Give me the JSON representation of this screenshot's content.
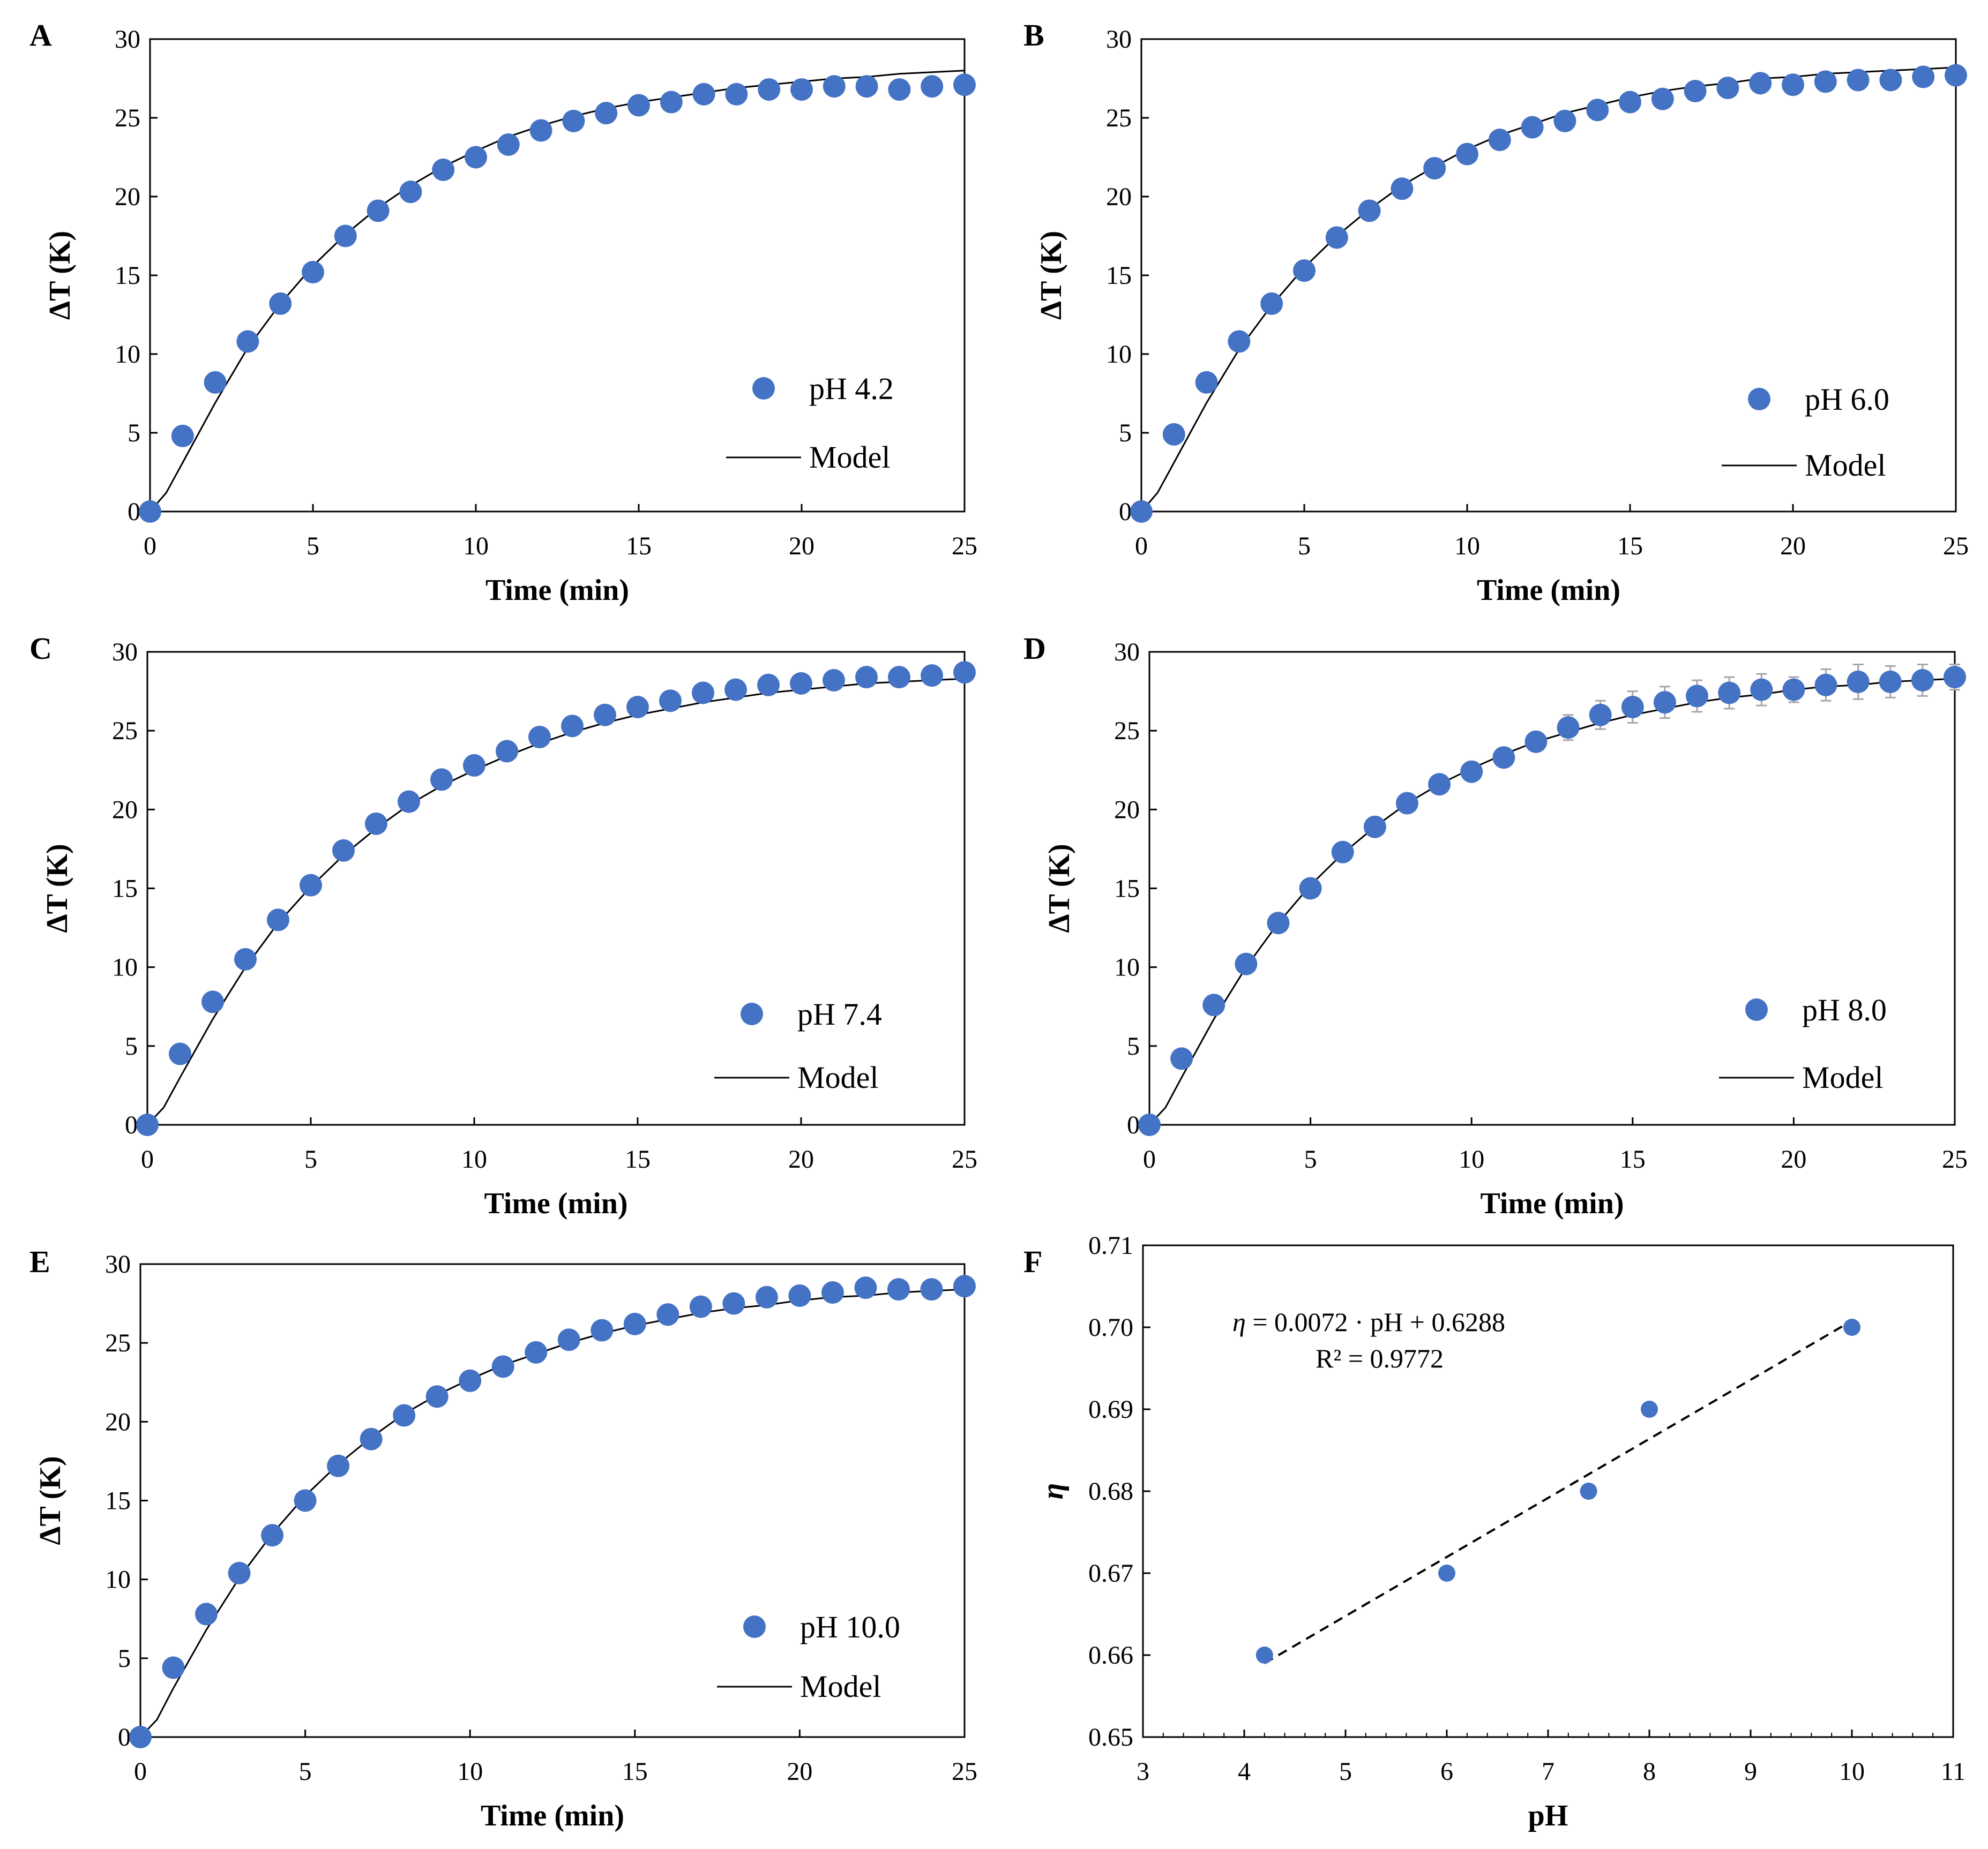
{
  "figure": {
    "marker_color": "#4472C4",
    "line_color": "#000000",
    "error_bar_color": "#A6A6A6"
  },
  "chart_data": [
    {
      "panel": "A",
      "type": "scatter",
      "xlabel": "Time (min)",
      "ylabel": "ΔT (K)",
      "xlim": [
        0,
        25
      ],
      "ylim": [
        0,
        30
      ],
      "xticks": [
        0,
        5,
        10,
        15,
        20,
        25
      ],
      "yticks": [
        0,
        5,
        10,
        15,
        20,
        25,
        30
      ],
      "grid": false,
      "legend_position": "right",
      "series": [
        {
          "name": "pH 4.2",
          "kind": "markers",
          "x": [
            0,
            1,
            2,
            3,
            4,
            5,
            6,
            7,
            8,
            9,
            10,
            11,
            12,
            13,
            14,
            15,
            16,
            17,
            18,
            19,
            20,
            21,
            22,
            23,
            24,
            25
          ],
          "y": [
            0,
            4.8,
            8.2,
            10.8,
            13.2,
            15.2,
            17.5,
            19.1,
            20.3,
            21.7,
            22.5,
            23.3,
            24.2,
            24.8,
            25.3,
            25.8,
            26.0,
            26.5,
            26.5,
            26.8,
            26.8,
            27.0,
            27.0,
            26.8,
            27.0,
            27.1
          ],
          "err": [
            0,
            0,
            0,
            0,
            0,
            0,
            0,
            0,
            0,
            0,
            0,
            0,
            0,
            0,
            0,
            0,
            0,
            0,
            0,
            0.3,
            0.4,
            0.4,
            0.3,
            0.3,
            0.3,
            0.3
          ]
        },
        {
          "name": "Model",
          "kind": "line",
          "x": [
            0,
            0.5,
            1,
            2,
            3,
            4,
            5,
            6,
            7,
            8,
            9,
            10,
            11,
            12,
            13,
            14,
            15,
            16,
            17,
            18,
            19,
            20,
            21,
            22,
            23,
            24,
            25
          ],
          "y": [
            0,
            1.2,
            3.1,
            6.9,
            10.4,
            13.2,
            15.6,
            17.6,
            19.3,
            20.7,
            21.9,
            22.9,
            23.8,
            24.5,
            25.1,
            25.6,
            26.0,
            26.3,
            26.6,
            26.9,
            27.1,
            27.3,
            27.5,
            27.6,
            27.8,
            27.9,
            28.0
          ]
        }
      ]
    },
    {
      "panel": "B",
      "type": "scatter",
      "xlabel": "Time (min)",
      "ylabel": "ΔT (K)",
      "xlim": [
        0,
        25
      ],
      "ylim": [
        0,
        30
      ],
      "xticks": [
        0,
        5,
        10,
        15,
        20,
        25
      ],
      "yticks": [
        0,
        5,
        10,
        15,
        20,
        25,
        30
      ],
      "grid": false,
      "legend_position": "right",
      "series": [
        {
          "name": "pH 6.0",
          "kind": "markers",
          "x": [
            0,
            1,
            2,
            3,
            4,
            5,
            6,
            7,
            8,
            9,
            10,
            11,
            12,
            13,
            14,
            15,
            16,
            17,
            18,
            19,
            20,
            21,
            22,
            23,
            24,
            25
          ],
          "y": [
            0,
            4.9,
            8.2,
            10.8,
            13.2,
            15.3,
            17.4,
            19.1,
            20.5,
            21.8,
            22.7,
            23.6,
            24.4,
            24.8,
            25.5,
            26.0,
            26.2,
            26.7,
            26.9,
            27.2,
            27.1,
            27.3,
            27.4,
            27.4,
            27.6,
            27.7
          ],
          "err": [
            0,
            0,
            0,
            0,
            0,
            0,
            0,
            0,
            0,
            0,
            0,
            0,
            0,
            0,
            0,
            0,
            0.4,
            0.4,
            0.3,
            0.4,
            0.6,
            0.5,
            0.4,
            0.4,
            0.3,
            0.3
          ]
        },
        {
          "name": "Model",
          "kind": "line",
          "x": [
            0,
            0.5,
            1,
            2,
            3,
            4,
            5,
            6,
            7,
            8,
            9,
            10,
            11,
            12,
            13,
            14,
            15,
            16,
            17,
            18,
            19,
            20,
            21,
            22,
            23,
            24,
            25
          ],
          "y": [
            0,
            1.2,
            3.1,
            6.9,
            10.3,
            13.1,
            15.5,
            17.5,
            19.2,
            20.7,
            21.9,
            23.0,
            23.9,
            24.6,
            25.3,
            25.8,
            26.3,
            26.7,
            27.0,
            27.2,
            27.5,
            27.6,
            27.8,
            27.9,
            28.0,
            28.1,
            28.2
          ]
        }
      ]
    },
    {
      "panel": "C",
      "type": "scatter",
      "xlabel": "Time (min)",
      "ylabel": "ΔT (K)",
      "xlim": [
        0,
        25
      ],
      "ylim": [
        0,
        30
      ],
      "xticks": [
        0,
        5,
        10,
        15,
        20,
        25
      ],
      "yticks": [
        0,
        5,
        10,
        15,
        20,
        25,
        30
      ],
      "grid": false,
      "legend_position": "right",
      "series": [
        {
          "name": "pH 7.4",
          "kind": "markers",
          "x": [
            0,
            1,
            2,
            3,
            4,
            5,
            6,
            7,
            8,
            9,
            10,
            11,
            12,
            13,
            14,
            15,
            16,
            17,
            18,
            19,
            20,
            21,
            22,
            23,
            24,
            25
          ],
          "y": [
            0,
            4.5,
            7.8,
            10.5,
            13.0,
            15.2,
            17.4,
            19.1,
            20.5,
            21.9,
            22.8,
            23.7,
            24.6,
            25.3,
            26.0,
            26.5,
            26.9,
            27.4,
            27.6,
            27.9,
            28.0,
            28.2,
            28.4,
            28.4,
            28.5,
            28.7
          ],
          "err": [
            0,
            0,
            0,
            0,
            0,
            0,
            0,
            0,
            0,
            0,
            0,
            0,
            0,
            0,
            0,
            0,
            0,
            0,
            0,
            0,
            0,
            0,
            0,
            0,
            0,
            0
          ]
        },
        {
          "name": "Model",
          "kind": "line",
          "x": [
            0,
            0.5,
            1,
            2,
            3,
            4,
            5,
            6,
            7,
            8,
            9,
            10,
            11,
            12,
            13,
            14,
            15,
            16,
            17,
            18,
            19,
            20,
            21,
            22,
            23,
            24,
            25
          ],
          "y": [
            0,
            1.1,
            3.0,
            6.7,
            10.0,
            12.8,
            15.1,
            17.1,
            18.8,
            20.3,
            21.5,
            22.5,
            23.4,
            24.2,
            24.9,
            25.5,
            26.0,
            26.4,
            26.8,
            27.1,
            27.4,
            27.6,
            27.8,
            28.0,
            28.1,
            28.2,
            28.3
          ]
        }
      ]
    },
    {
      "panel": "D",
      "type": "scatter",
      "xlabel": "Time (min)",
      "ylabel": "ΔT (K)",
      "xlim": [
        0,
        25
      ],
      "ylim": [
        0,
        30
      ],
      "xticks": [
        0,
        5,
        10,
        15,
        20,
        25
      ],
      "yticks": [
        0,
        5,
        10,
        15,
        20,
        25,
        30
      ],
      "grid": false,
      "legend_position": "right",
      "series": [
        {
          "name": "pH 8.0",
          "kind": "markers",
          "x": [
            0,
            1,
            2,
            3,
            4,
            5,
            6,
            7,
            8,
            9,
            10,
            11,
            12,
            13,
            14,
            15,
            16,
            17,
            18,
            19,
            20,
            21,
            22,
            23,
            24,
            25
          ],
          "y": [
            0,
            4.2,
            7.6,
            10.2,
            12.8,
            15.0,
            17.3,
            18.9,
            20.4,
            21.6,
            22.4,
            23.3,
            24.3,
            25.2,
            26.0,
            26.5,
            26.8,
            27.2,
            27.4,
            27.6,
            27.6,
            27.9,
            28.1,
            28.1,
            28.2,
            28.4
          ],
          "err": [
            0,
            0,
            0,
            0,
            0,
            0,
            0,
            0.5,
            0.5,
            0.4,
            0.4,
            0.5,
            0.6,
            0.8,
            0.9,
            1.0,
            1.0,
            1.0,
            1.0,
            1.0,
            0.8,
            1.0,
            1.1,
            1.0,
            1.0,
            0.8
          ]
        },
        {
          "name": "Model",
          "kind": "line",
          "x": [
            0,
            0.5,
            1,
            2,
            3,
            4,
            5,
            6,
            7,
            8,
            9,
            10,
            11,
            12,
            13,
            14,
            15,
            16,
            17,
            18,
            19,
            20,
            21,
            22,
            23,
            24,
            25
          ],
          "y": [
            0,
            1.1,
            3.0,
            6.7,
            10.0,
            12.8,
            15.2,
            17.2,
            18.9,
            20.4,
            21.6,
            22.6,
            23.5,
            24.3,
            24.9,
            25.5,
            26.0,
            26.4,
            26.8,
            27.1,
            27.3,
            27.6,
            27.8,
            27.9,
            28.1,
            28.2,
            28.3
          ]
        }
      ]
    },
    {
      "panel": "E",
      "type": "scatter",
      "xlabel": "Time (min)",
      "ylabel": "ΔT (K)",
      "xlim": [
        0,
        25
      ],
      "ylim": [
        0,
        30
      ],
      "xticks": [
        0,
        5,
        10,
        15,
        20,
        25
      ],
      "yticks": [
        0,
        5,
        10,
        15,
        20,
        25,
        30
      ],
      "grid": false,
      "legend_position": "right",
      "series": [
        {
          "name": "pH 10.0",
          "kind": "markers",
          "x": [
            0,
            1,
            2,
            3,
            4,
            5,
            6,
            7,
            8,
            9,
            10,
            11,
            12,
            13,
            14,
            15,
            16,
            17,
            18,
            19,
            20,
            21,
            22,
            23,
            24,
            25
          ],
          "y": [
            0,
            4.4,
            7.8,
            10.4,
            12.8,
            15.0,
            17.2,
            18.9,
            20.4,
            21.6,
            22.6,
            23.5,
            24.4,
            25.2,
            25.8,
            26.2,
            26.8,
            27.3,
            27.5,
            27.9,
            28.0,
            28.2,
            28.5,
            28.4,
            28.4,
            28.6
          ],
          "err": [
            0,
            0,
            0,
            0,
            0,
            0,
            0,
            0,
            0,
            0,
            0,
            0,
            0,
            0,
            0,
            0,
            0,
            0,
            0,
            0,
            0,
            0,
            0,
            0,
            0,
            0
          ]
        },
        {
          "name": "Model",
          "kind": "line",
          "x": [
            0,
            0.5,
            1,
            2,
            3,
            4,
            5,
            6,
            7,
            8,
            9,
            10,
            11,
            12,
            13,
            14,
            15,
            16,
            17,
            18,
            19,
            20,
            21,
            22,
            23,
            24,
            25
          ],
          "y": [
            0,
            1.1,
            3.1,
            6.8,
            10.1,
            12.9,
            15.3,
            17.3,
            19.0,
            20.5,
            21.7,
            22.7,
            23.6,
            24.3,
            25.0,
            25.6,
            26.1,
            26.5,
            26.9,
            27.2,
            27.4,
            27.7,
            27.9,
            28.0,
            28.2,
            28.3,
            28.4
          ]
        }
      ]
    },
    {
      "panel": "F",
      "type": "scatter",
      "xlabel": "pH",
      "ylabel": "η",
      "xlim": [
        3,
        11
      ],
      "ylim": [
        0.65,
        0.71
      ],
      "xticks": [
        3,
        4,
        5,
        6,
        7,
        8,
        9,
        10,
        11
      ],
      "yticks": [
        0.65,
        0.66,
        0.67,
        0.68,
        0.69,
        0.7,
        0.71
      ],
      "ytick_labels": [
        "0.65",
        "0.66",
        "0.67",
        "0.68",
        "0.69",
        "0.70",
        "0.71"
      ],
      "grid": false,
      "annotations": [
        "η = 0.0072 · pH + 0.6288",
        "R² = 0.9772"
      ],
      "series": [
        {
          "kind": "markers",
          "x": [
            4.2,
            6.0,
            7.4,
            8.0,
            10.0
          ],
          "y": [
            0.66,
            0.67,
            0.68,
            0.69,
            0.7
          ]
        },
        {
          "kind": "dashed-line",
          "x": [
            4.2,
            10.0
          ],
          "y": [
            0.659,
            0.7008
          ]
        }
      ]
    }
  ]
}
